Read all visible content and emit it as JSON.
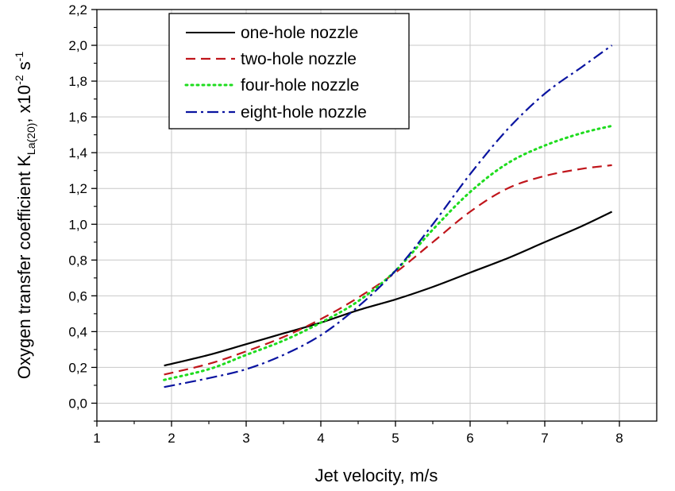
{
  "chart_data": {
    "type": "line",
    "xlabel": "Jet velocity, m/s",
    "ylabel_parts": {
      "main": "Oxygen transfer coefficient K",
      "subscript": "La(20)",
      "units_prefix": ", x10",
      "exp1": "-2",
      "units_mid": " s",
      "exp2": "-1"
    },
    "xlim": [
      1,
      8.5
    ],
    "ylim": [
      -0.1,
      2.2
    ],
    "x_ticks": [
      1,
      2,
      3,
      4,
      5,
      6,
      7,
      8
    ],
    "x_tick_labels": [
      "1",
      "2",
      "3",
      "4",
      "5",
      "6",
      "7",
      "8"
    ],
    "y_ticks": [
      0.0,
      0.2,
      0.4,
      0.6,
      0.8,
      1.0,
      1.2,
      1.4,
      1.6,
      1.8,
      2.0,
      2.2
    ],
    "y_tick_labels": [
      "0,0",
      "0,2",
      "0,4",
      "0,6",
      "0,8",
      "1,0",
      "1,2",
      "1,4",
      "1,6",
      "1,8",
      "2,0",
      "2,2"
    ],
    "grid": true,
    "legend_position": "top-left",
    "series": [
      {
        "name": "one-hole nozzle",
        "color": "#000000",
        "style": "solid",
        "x": [
          1.9,
          2.5,
          3.0,
          3.5,
          4.0,
          4.5,
          5.0,
          5.5,
          6.0,
          6.5,
          7.0,
          7.5,
          7.9
        ],
        "y": [
          0.21,
          0.27,
          0.33,
          0.39,
          0.45,
          0.52,
          0.58,
          0.65,
          0.73,
          0.81,
          0.9,
          0.99,
          1.07
        ]
      },
      {
        "name": "two-hole nozzle",
        "color": "#c0151b",
        "style": "dashed",
        "x": [
          1.9,
          2.5,
          3.0,
          3.5,
          4.0,
          4.5,
          5.0,
          5.5,
          6.0,
          6.5,
          7.0,
          7.5,
          7.9
        ],
        "y": [
          0.16,
          0.22,
          0.29,
          0.37,
          0.47,
          0.59,
          0.73,
          0.9,
          1.07,
          1.2,
          1.27,
          1.31,
          1.33
        ]
      },
      {
        "name": "four-hole nozzle",
        "color": "#1fdc1f",
        "style": "dotted",
        "x": [
          1.9,
          2.5,
          3.0,
          3.5,
          4.0,
          4.5,
          5.0,
          5.5,
          6.0,
          6.5,
          7.0,
          7.5,
          7.9
        ],
        "y": [
          0.13,
          0.19,
          0.27,
          0.35,
          0.45,
          0.57,
          0.74,
          0.97,
          1.18,
          1.34,
          1.44,
          1.51,
          1.55
        ]
      },
      {
        "name": "eight-hole nozzle",
        "color": "#0a14a0",
        "style": "dashdot",
        "x": [
          1.9,
          2.5,
          3.0,
          3.5,
          4.0,
          4.5,
          5.0,
          5.5,
          6.0,
          6.5,
          7.0,
          7.5,
          7.9
        ],
        "y": [
          0.09,
          0.14,
          0.19,
          0.27,
          0.38,
          0.54,
          0.74,
          1.0,
          1.28,
          1.53,
          1.73,
          1.88,
          2.0
        ]
      }
    ]
  }
}
